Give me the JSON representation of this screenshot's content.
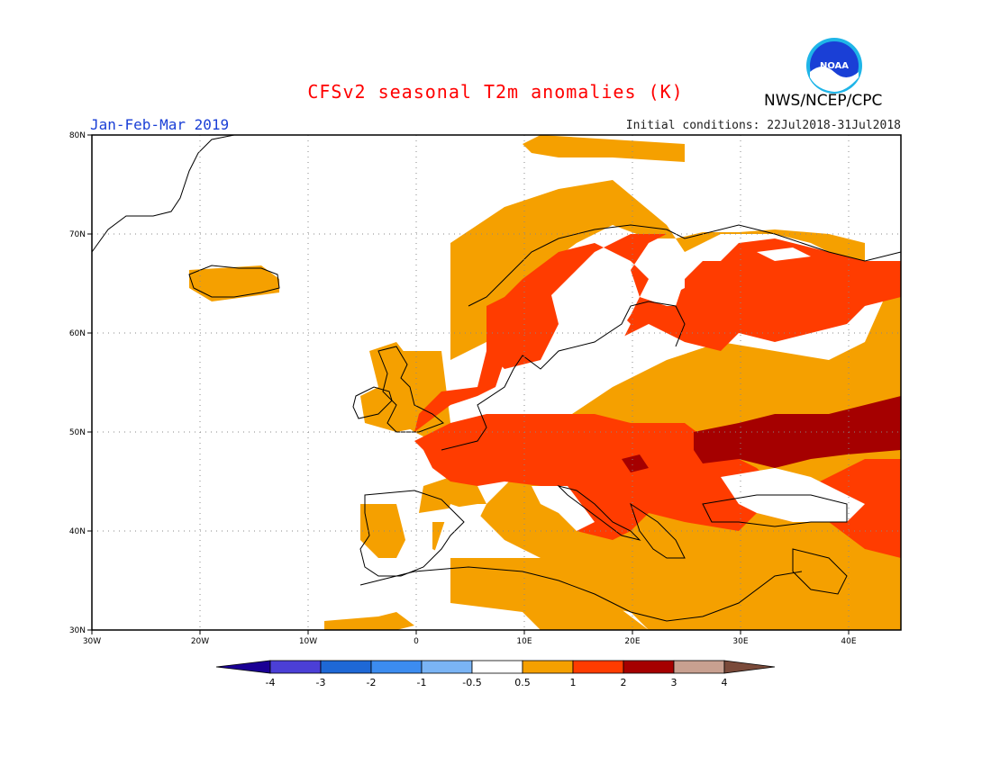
{
  "header": {
    "title": "CFSv2 seasonal T2m anomalies (K)",
    "season": "Jan-Feb-Mar 2019",
    "initial_conditions": "Initial conditions: 22Jul2018-31Jul2018",
    "organization": "NWS/NCEP/CPC",
    "logo_text": "NOAA"
  },
  "map": {
    "projection": "lat-lon",
    "lon_ticks": [
      "30W",
      "20W",
      "10W",
      "0",
      "10E",
      "20E",
      "30E",
      "40E"
    ],
    "lat_ticks": [
      "30N",
      "40N",
      "50N",
      "60N",
      "70N",
      "80N"
    ],
    "grid": "dotted"
  },
  "colorbar": {
    "labels": [
      "-4",
      "-3",
      "-2",
      "-1",
      "-0.5",
      "0.5",
      "1",
      "2",
      "3",
      "4"
    ],
    "colors": [
      "#1a0094",
      "#4b3fd6",
      "#1e68d6",
      "#3c8cf0",
      "#7ab4f5",
      "#ffffff",
      "#f5a000",
      "#ff3c00",
      "#a50000",
      "#c8a090",
      "#7a4a3a"
    ]
  },
  "anomaly_colors": {
    "0.5-1": "#f5a000",
    "1-2": "#ff3c00",
    "2-3": "#a50000"
  }
}
